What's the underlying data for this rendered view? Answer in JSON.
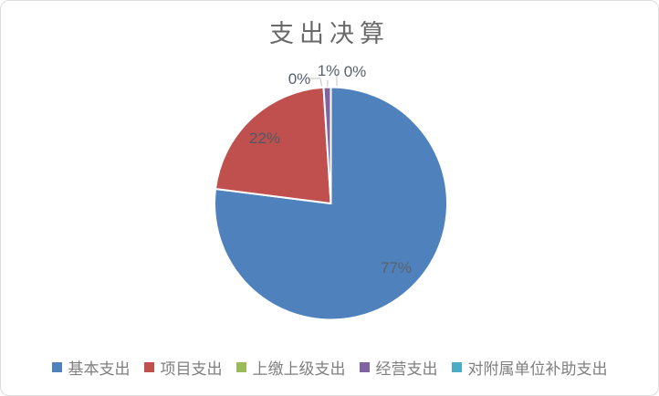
{
  "chart_data": {
    "type": "pie",
    "title": "支出决算",
    "legend_position": "bottom",
    "start_angle": "top",
    "direction": "clockwise",
    "series": [
      {
        "name": "基本支出",
        "value": 77,
        "display": "77%",
        "color": "#4F81BD"
      },
      {
        "name": "项目支出",
        "value": 22,
        "display": "22%",
        "color": "#C0504D"
      },
      {
        "name": "上缴上级支出",
        "value": 0,
        "display": "0%",
        "color": "#9BBB59"
      },
      {
        "name": "经营支出",
        "value": 1,
        "display": "1%",
        "color": "#8064A2"
      },
      {
        "name": "对附属单位补助支出",
        "value": 0,
        "display": "0%",
        "color": "#4BACC6"
      }
    ],
    "label_color": "#57606f",
    "leader_line_color": "#c3c3c3",
    "slice_border_color": "#ffffff"
  }
}
